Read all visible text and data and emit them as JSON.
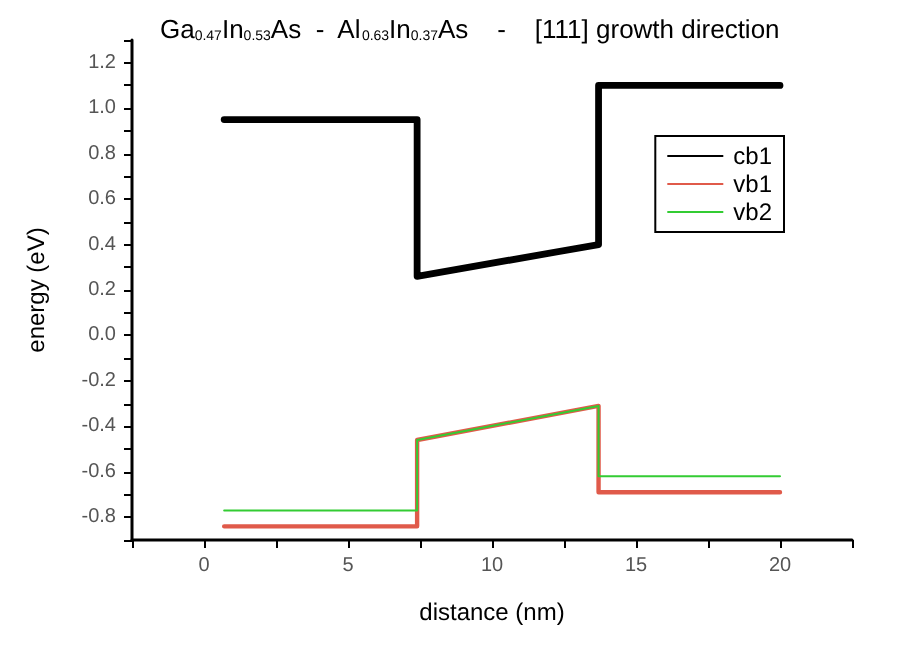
{
  "chart_data": {
    "type": "line",
    "title": "Ga$_{0.47}$In$_{0.53}$As  -  Al$_{0.63}$In$_{0.37}$As    -    [111] growth direction",
    "xlabel": "distance (nm)",
    "ylabel": "energy (eV)",
    "series": [
      {
        "name": "cb1",
        "color": "#000000",
        "x": [
          0.7,
          7.4,
          7.4,
          13.7,
          13.7,
          20
        ],
        "values": [
          0.95,
          0.95,
          0.26,
          0.4,
          1.1,
          1.1
        ]
      },
      {
        "name": "vb1",
        "color": "#e05a4a",
        "x": [
          0.7,
          7.4,
          7.4,
          13.7,
          13.7,
          20
        ],
        "values": [
          -0.84,
          -0.84,
          -0.46,
          -0.31,
          -0.69,
          -0.69
        ]
      },
      {
        "name": "vb2",
        "color": "#33cc33",
        "x": [
          0.7,
          7.4,
          7.4,
          13.7,
          13.7,
          20
        ],
        "values": [
          -0.77,
          -0.77,
          -0.46,
          -0.31,
          -0.62,
          -0.62
        ]
      }
    ],
    "xlim": [
      -2.5,
      22.5
    ],
    "xticks": [
      {
        "value": -2.5,
        "label": null
      },
      0,
      {
        "value": 2.5,
        "label": null
      },
      5,
      {
        "value": 7.5,
        "label": null
      },
      10,
      {
        "value": 12.5,
        "label": null
      },
      15,
      {
        "value": 17.5,
        "label": null
      },
      20,
      {
        "value": 22.5,
        "label": null
      }
    ],
    "ylim": [
      -0.9,
      1.3
    ],
    "yticks": [
      {
        "value": -0.9,
        "label": null
      },
      {
        "value": -0.8,
        "label": "-0.8"
      },
      {
        "value": -0.7,
        "label": null
      },
      {
        "value": -0.6,
        "label": "-0.6"
      },
      {
        "value": -0.5,
        "label": null
      },
      {
        "value": -0.4,
        "label": "-0.4"
      },
      {
        "value": -0.3,
        "label": null
      },
      {
        "value": -0.2,
        "label": "-0.2"
      },
      {
        "value": -0.1,
        "label": null
      },
      {
        "value": 0,
        "label": "0.0"
      },
      {
        "value": 0.1,
        "label": null
      },
      {
        "value": 0.2,
        "label": "0.2"
      },
      {
        "value": 0.3,
        "label": null
      },
      {
        "value": 0.4,
        "label": "0.4"
      },
      {
        "value": 0.5,
        "label": null
      },
      {
        "value": 0.6,
        "label": "0.6"
      },
      {
        "value": 0.7,
        "label": null
      },
      {
        "value": 0.8,
        "label": "0.8"
      },
      {
        "value": 0.9,
        "label": null
      },
      {
        "value": 1.0,
        "label": "1.0"
      },
      {
        "value": 1.1,
        "label": null
      },
      {
        "value": 1.2,
        "label": "1.2"
      },
      {
        "value": 1.3,
        "label": null
      }
    ],
    "grid": false,
    "legend": "top right",
    "marker": "none",
    "line_style": "solid"
  }
}
